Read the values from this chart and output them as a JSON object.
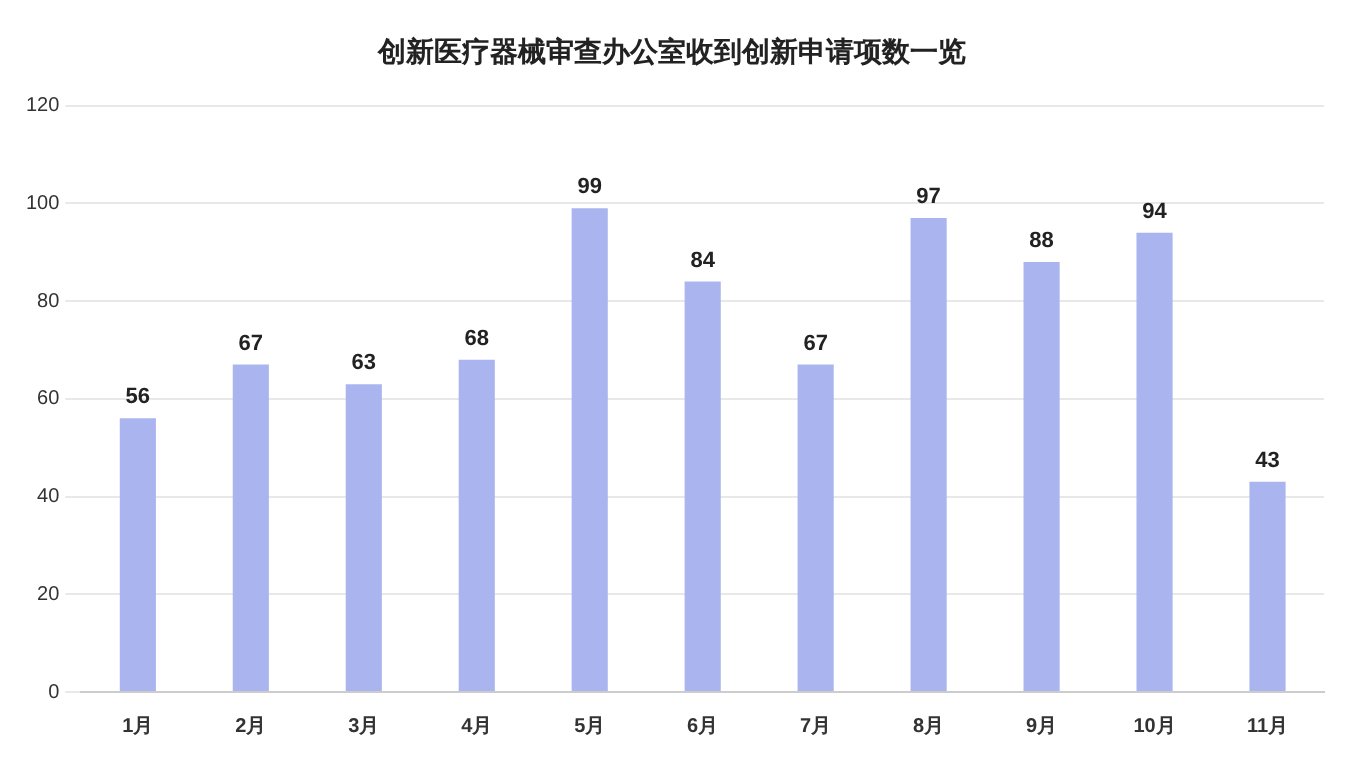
{
  "chart_data": {
    "type": "bar",
    "title": "创新医疗器械审查办公室收到创新申请项数一览",
    "categories": [
      "1月",
      "2月",
      "3月",
      "4月",
      "5月",
      "6月",
      "7月",
      "8月",
      "9月",
      "10月",
      "11月"
    ],
    "values": [
      56,
      67,
      63,
      68,
      99,
      84,
      67,
      97,
      88,
      94,
      43
    ],
    "color": "#aab5ef",
    "ylim": [
      0,
      120
    ],
    "yticks": [
      0,
      20,
      40,
      60,
      80,
      100,
      120
    ],
    "grid": "y",
    "data_labels": true,
    "legend": false
  }
}
